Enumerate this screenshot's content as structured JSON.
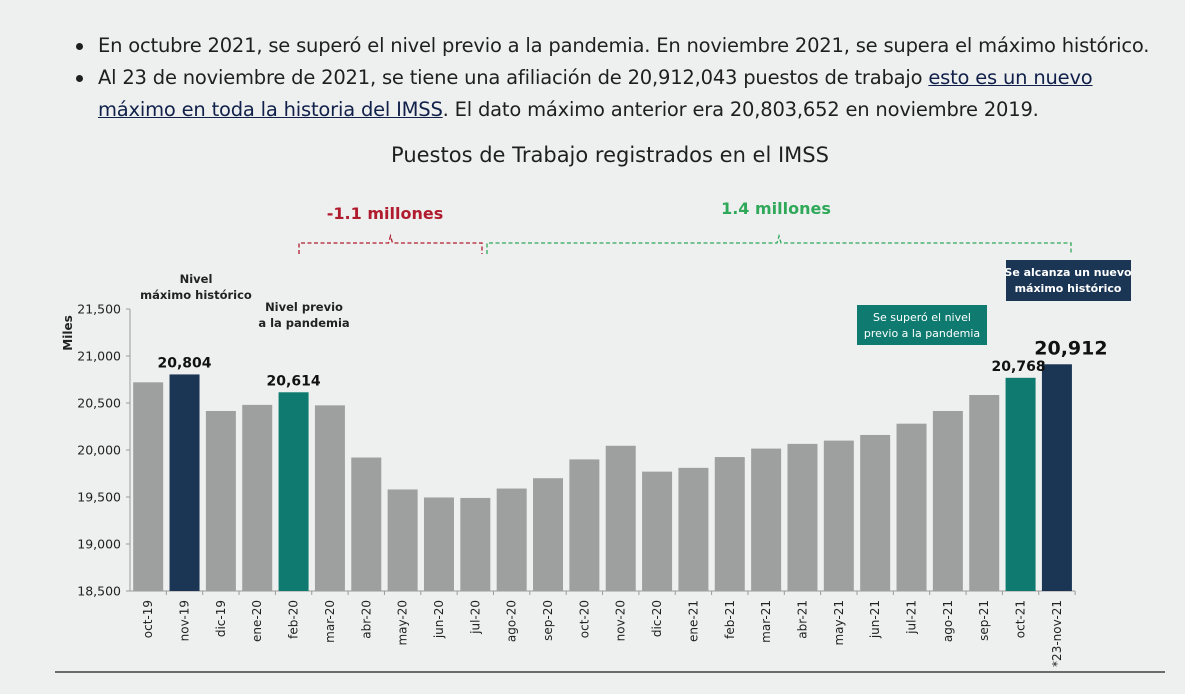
{
  "bullets": [
    {
      "text": "En octubre 2021, se superó el nivel previo a la pandemia. En noviembre 2021, se supera el máximo histórico."
    },
    {
      "text_before": "Al 23 de noviembre de 2021, se tiene una afiliación de 20,912,043 puestos de trabajo ",
      "underlined": "esto es un nuevo máximo en toda la historia del IMSS",
      "text_after": ". El dato máximo anterior era 20,803,652 en noviembre 2019."
    }
  ],
  "colors": {
    "default_bar": "#9ea09f",
    "max_bar": "#1b3554",
    "prepandemic_bar": "#0f7b70",
    "negative": "#b01c2e",
    "positive": "#2fa85a"
  },
  "chart_data": {
    "type": "bar",
    "title": "Puestos de Trabajo registrados en el IMSS",
    "ylabel": "Miles",
    "xlabel": "",
    "ylim": [
      18500,
      21500
    ],
    "yticks": [
      "18,500",
      "19,000",
      "19,500",
      "20,000",
      "20,500",
      "21,000",
      "21,500"
    ],
    "ytick_values": [
      18500,
      19000,
      19500,
      20000,
      20500,
      21000,
      21500
    ],
    "grid": false,
    "categories": [
      "oct-19",
      "nov-19",
      "dic-19",
      "ene-20",
      "feb-20",
      "mar-20",
      "abr-20",
      "may-20",
      "jun-20",
      "jul-20",
      "ago-20",
      "sep-20",
      "oct-20",
      "nov-20",
      "dic-20",
      "ene-21",
      "feb-21",
      "mar-21",
      "abr-21",
      "may-21",
      "jun-21",
      "jul-21",
      "ago-21",
      "sep-21",
      "oct-21",
      "*23-nov-21"
    ],
    "values": [
      20720,
      20804,
      20415,
      20480,
      20614,
      20475,
      19920,
      19580,
      19495,
      19490,
      19590,
      19700,
      19900,
      20045,
      19770,
      19810,
      19925,
      20015,
      20065,
      20100,
      20160,
      20280,
      20415,
      20585,
      20768,
      20912
    ],
    "bar_roles": [
      "default",
      "max",
      "default",
      "default",
      "prepandemic",
      "default",
      "default",
      "default",
      "default",
      "default",
      "default",
      "default",
      "default",
      "default",
      "default",
      "default",
      "default",
      "default",
      "default",
      "default",
      "default",
      "default",
      "default",
      "default",
      "prepandemic",
      "max"
    ],
    "data_labels": [
      {
        "index": 1,
        "text": "20,804"
      },
      {
        "index": 4,
        "text": "20,614"
      },
      {
        "index": 24,
        "text": "20,768"
      },
      {
        "index": 25,
        "text": "20,912"
      }
    ],
    "annotations": {
      "max_note_line1": "Nivel",
      "max_note_line2": "máximo histórico",
      "prepandemic_note_line1": "Nivel previo",
      "prepandemic_note_line2": "a la pandemia",
      "loss_label": "-1.1 millones",
      "loss_from": "feb-20",
      "loss_to": "jul-20",
      "gain_label": "1.4 millones",
      "gain_from": "jul-20",
      "gain_to": "*23-nov-21",
      "box_prepandemic_line1": "Se superó el nivel",
      "box_prepandemic_line2": "previo a la pandemia",
      "box_newmax_line1": "Se alcanza un nuevo",
      "box_newmax_line2": "máximo histórico"
    }
  }
}
